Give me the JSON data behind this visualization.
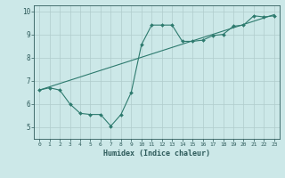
{
  "xlabel": "Humidex (Indice chaleur)",
  "bg_color": "#cce8e8",
  "grid_color": "#b0cccc",
  "line_color": "#2d7a6e",
  "xlim": [
    -0.5,
    23.5
  ],
  "ylim": [
    4.5,
    10.25
  ],
  "xticks": [
    0,
    1,
    2,
    3,
    4,
    5,
    6,
    7,
    8,
    9,
    10,
    11,
    12,
    13,
    14,
    15,
    16,
    17,
    18,
    19,
    20,
    21,
    22,
    23
  ],
  "yticks": [
    5,
    6,
    7,
    8,
    9,
    10
  ],
  "line1_x": [
    0,
    1,
    2,
    3,
    4,
    5,
    6,
    7,
    8,
    9,
    10,
    11,
    12,
    13,
    14,
    15,
    16,
    17,
    18,
    19,
    20,
    21,
    22,
    23
  ],
  "line1_y": [
    6.6,
    6.7,
    6.6,
    6.0,
    5.6,
    5.55,
    5.55,
    5.05,
    5.55,
    6.5,
    8.55,
    9.4,
    9.4,
    9.4,
    8.7,
    8.7,
    8.75,
    8.95,
    9.0,
    9.35,
    9.4,
    9.8,
    9.75,
    9.8
  ],
  "line2_x": [
    0,
    23
  ],
  "line2_y": [
    6.6,
    9.85
  ]
}
